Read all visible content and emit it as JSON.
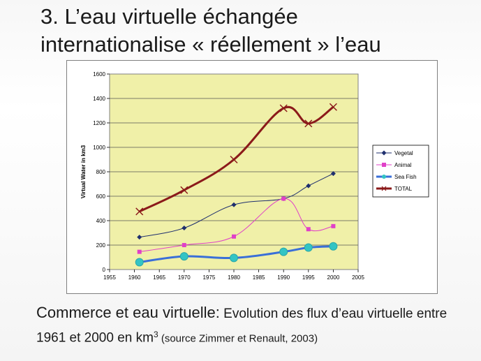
{
  "slide": {
    "title_line1": "3. L’eau virtuelle échangée",
    "title_line2": "internationalise « réellement » l’eau"
  },
  "caption": {
    "lead": "Commerce et eau virtuelle:",
    "text_part1": " Evolution des flux d’eau virtuelle entre 1961 et 2000 en km",
    "superscript": "3",
    "source": " (source Zimmer et Renault, 2003)"
  },
  "chart_data": {
    "type": "line",
    "title": "",
    "xlabel": "",
    "ylabel": "Virtual Water in km3",
    "xlim": [
      1955,
      2005
    ],
    "ylim": [
      0,
      1600
    ],
    "x_ticks": [
      1955,
      1960,
      1965,
      1970,
      1975,
      1980,
      1985,
      1990,
      1995,
      2000,
      2005
    ],
    "y_ticks": [
      0,
      200,
      400,
      600,
      800,
      1000,
      1200,
      1400,
      1600
    ],
    "grid": "horizontal",
    "legend_position": "right",
    "plot_background": "#f0f0a8",
    "x": [
      1961,
      1970,
      1980,
      1990,
      1995,
      2000
    ],
    "series": [
      {
        "name": "Vegetal",
        "values": [
          265,
          340,
          530,
          580,
          685,
          785
        ],
        "color": "#1f2f6e",
        "marker": "diamond",
        "width": 1
      },
      {
        "name": "Animal",
        "values": [
          145,
          200,
          270,
          580,
          330,
          355
        ],
        "color": "#e040c8",
        "marker": "square",
        "width": 1
      },
      {
        "name": "Sea Fish",
        "values": [
          60,
          108,
          95,
          145,
          180,
          190
        ],
        "color": "#3a6fd8",
        "marker": "circle",
        "width": 3
      },
      {
        "name": "TOTAL",
        "values": [
          475,
          650,
          900,
          1320,
          1195,
          1330
        ],
        "color": "#8b1a1a",
        "marker": "x",
        "width": 3
      }
    ]
  }
}
